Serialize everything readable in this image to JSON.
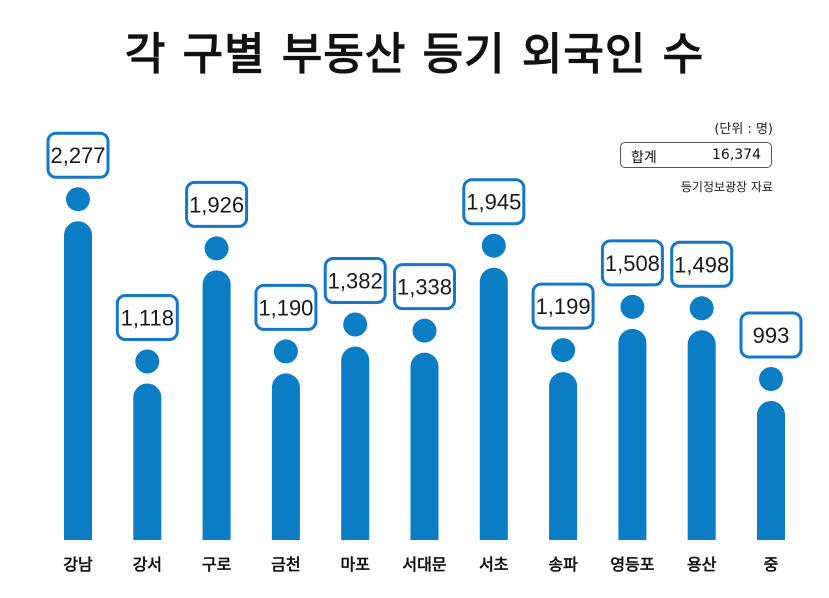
{
  "title": "각 구별 부동산 등기 외국인 수",
  "unit_note": "(단위 : 명)",
  "total": {
    "label": "합계",
    "value": "16,374"
  },
  "source": "등기정보광장 자료",
  "colors": {
    "bar": "#0a7dc4",
    "label_border": "#1477c8"
  },
  "chart_data": {
    "type": "bar",
    "title": "각 구별 부동산 등기 외국인 수",
    "categories": [
      "강남",
      "강서",
      "구로",
      "금천",
      "마포",
      "서대문",
      "서초",
      "송파",
      "영등포",
      "용산",
      "중"
    ],
    "values": [
      2277,
      1118,
      1926,
      1190,
      1382,
      1338,
      1945,
      1199,
      1508,
      1498,
      993
    ],
    "value_labels": [
      "2,277",
      "1,118",
      "1,926",
      "1,190",
      "1,382",
      "1,338",
      "1,945",
      "1,199",
      "1,508",
      "1,498",
      "993"
    ],
    "xlabel": "",
    "ylabel": "",
    "grid": false
  }
}
